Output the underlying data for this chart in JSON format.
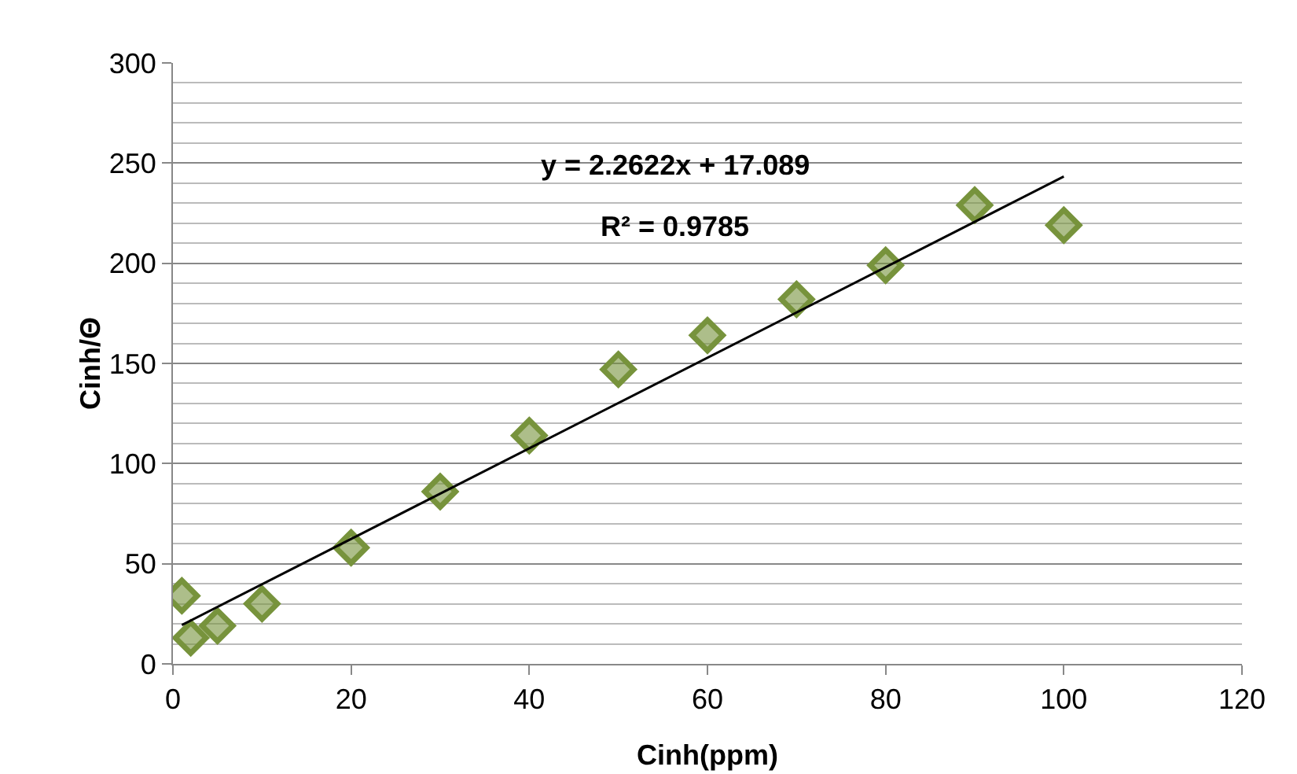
{
  "chart_data": {
    "type": "scatter",
    "xlabel": "Cinh(ppm)",
    "ylabel": "Cinh/Θ",
    "annotations": [
      "y = 2.2622x + 17.089",
      "R² = 0.9785"
    ],
    "xlim": [
      0,
      120
    ],
    "xticks": [
      0,
      20,
      40,
      60,
      80,
      100,
      120
    ],
    "ylim": [
      0,
      300
    ],
    "yticks": [
      0,
      50,
      100,
      150,
      200,
      250,
      300
    ],
    "grid": "y",
    "marker": "diamond",
    "series": [
      {
        "color": "#77933c",
        "x": [
          1,
          2,
          5,
          10,
          20,
          30,
          40,
          50,
          60,
          70,
          80,
          90,
          100
        ],
        "values": [
          34,
          13,
          19,
          30,
          58,
          86,
          114,
          147,
          164,
          182,
          199,
          229,
          219
        ]
      },
      {
        "type": "line",
        "color": "#000000",
        "marker": "none",
        "line_style": "solid",
        "x": [
          1,
          100
        ],
        "values": [
          19.4,
          243.3
        ]
      }
    ]
  }
}
